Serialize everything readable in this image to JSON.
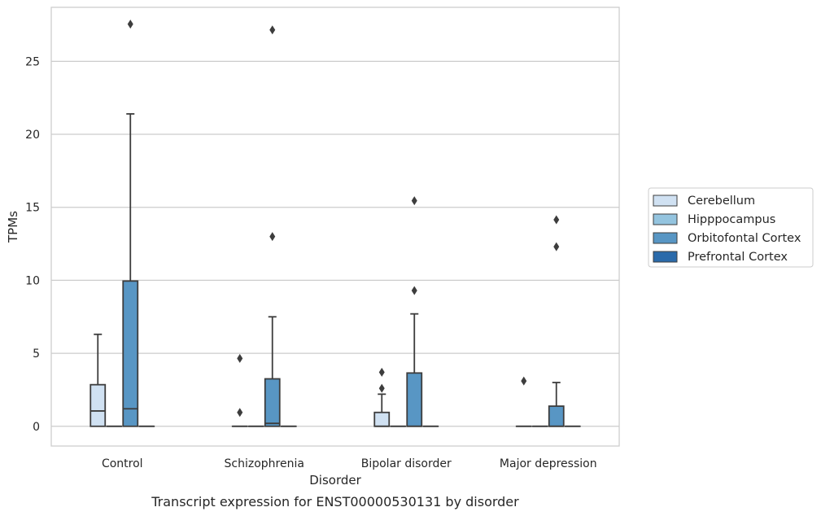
{
  "caption": "Transcript expression for ENST00000530131 by disorder",
  "chart_data": {
    "type": "box",
    "title": "",
    "xlabel": "Disorder",
    "ylabel": "TPMs",
    "ylim": [
      -1.35,
      28.7
    ],
    "yticks": [
      0,
      5,
      10,
      15,
      20,
      25
    ],
    "grid": "horizontal",
    "legend_position": "right",
    "categories": [
      "Control",
      "Schizophrenia",
      "Bipolar disorder",
      "Major depression"
    ],
    "series": [
      {
        "name": "Cerebellum",
        "color": "#d0e1f2",
        "boxes": [
          {
            "q1": 0,
            "median": 1.05,
            "q3": 2.85,
            "whisker_low": 0,
            "whisker_high": 6.3,
            "outliers": []
          },
          {
            "q1": 0,
            "median": 0,
            "q3": 0,
            "whisker_low": 0,
            "whisker_high": 0,
            "outliers": [
              4.65,
              0.95
            ]
          },
          {
            "q1": 0,
            "median": 0,
            "q3": 0.95,
            "whisker_low": 0,
            "whisker_high": 2.2,
            "outliers": [
              3.7,
              2.6
            ]
          },
          {
            "q1": 0,
            "median": 0,
            "q3": 0,
            "whisker_low": 0,
            "whisker_high": 0,
            "outliers": [
              3.1
            ]
          }
        ]
      },
      {
        "name": "Hipppocampus",
        "color": "#94c4df",
        "boxes": [
          {
            "q1": 0,
            "median": 0,
            "q3": 0,
            "whisker_low": 0,
            "whisker_high": 0,
            "outliers": []
          },
          {
            "q1": 0,
            "median": 0,
            "q3": 0,
            "whisker_low": 0,
            "whisker_high": 0,
            "outliers": []
          },
          {
            "q1": 0,
            "median": 0,
            "q3": 0,
            "whisker_low": 0,
            "whisker_high": 0,
            "outliers": []
          },
          {
            "q1": 0,
            "median": 0,
            "q3": 0,
            "whisker_low": 0,
            "whisker_high": 0,
            "outliers": []
          }
        ]
      },
      {
        "name": "Orbitofontal Cortex",
        "color": "#5896c4",
        "boxes": [
          {
            "q1": 0,
            "median": 1.2,
            "q3": 9.95,
            "whisker_low": 0,
            "whisker_high": 21.4,
            "outliers": [
              27.55
            ]
          },
          {
            "q1": 0,
            "median": 0.2,
            "q3": 3.25,
            "whisker_low": 0,
            "whisker_high": 7.5,
            "outliers": [
              27.15,
              13.0
            ]
          },
          {
            "q1": 0,
            "median": 0,
            "q3": 3.65,
            "whisker_low": 0,
            "whisker_high": 7.7,
            "outliers": [
              15.45,
              9.3
            ]
          },
          {
            "q1": 0,
            "median": 0,
            "q3": 1.38,
            "whisker_low": 0,
            "whisker_high": 3.0,
            "outliers": [
              14.15,
              12.3
            ]
          }
        ]
      },
      {
        "name": "Prefrontal Cortex",
        "color": "#2a6aaa",
        "boxes": [
          {
            "q1": 0,
            "median": 0,
            "q3": 0,
            "whisker_low": 0,
            "whisker_high": 0,
            "outliers": []
          },
          {
            "q1": 0,
            "median": 0,
            "q3": 0,
            "whisker_low": 0,
            "whisker_high": 0,
            "outliers": []
          },
          {
            "q1": 0,
            "median": 0,
            "q3": 0,
            "whisker_low": 0,
            "whisker_high": 0,
            "outliers": []
          },
          {
            "q1": 0,
            "median": 0,
            "q3": 0,
            "whisker_low": 0,
            "whisker_high": 0,
            "outliers": []
          }
        ]
      }
    ]
  }
}
